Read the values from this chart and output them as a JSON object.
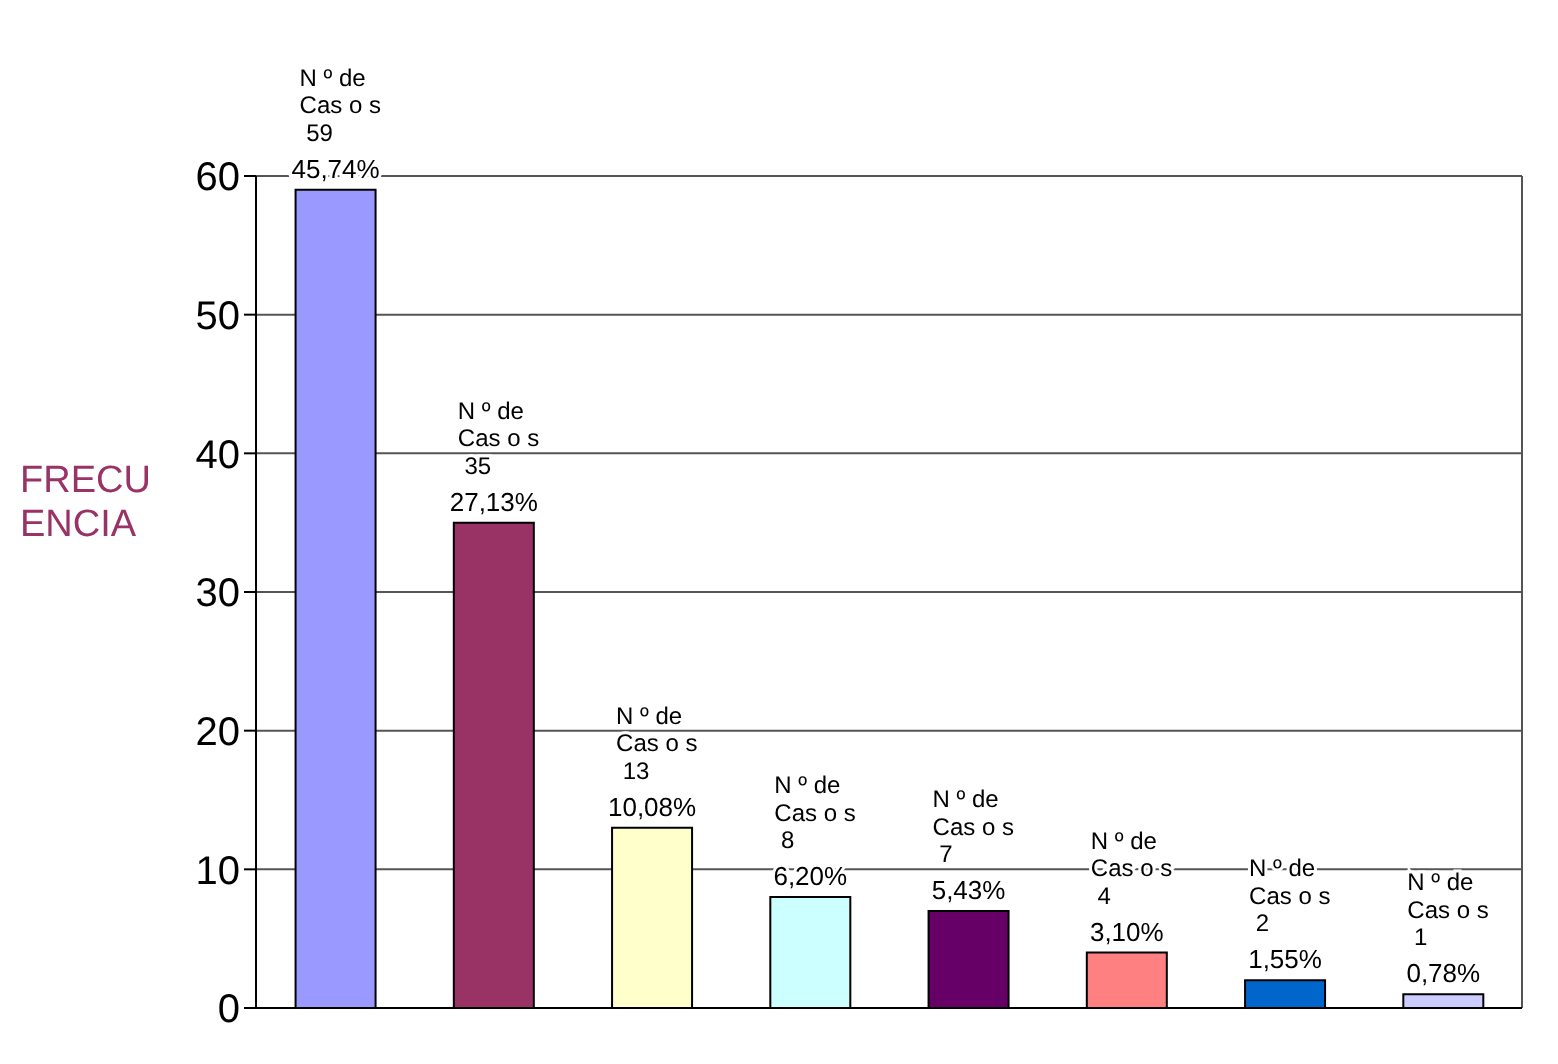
{
  "chart_data": {
    "type": "bar",
    "ylabel": "FRECU\nENCIA",
    "categories": [
      null,
      null,
      null,
      null,
      null,
      null,
      null,
      null
    ],
    "values": [
      59,
      35,
      13,
      8,
      7,
      4,
      2,
      1
    ],
    "colors": [
      "#9999ff",
      "#993366",
      "#ffffcc",
      "#ccffff",
      "#660066",
      "#ff8080",
      "#0066cc",
      "#ccccff"
    ],
    "value_labels": [
      "N º de\nCas o s\n 59",
      "N º de\nCas o s\n 35",
      "N º de\nCas o s\n 13",
      "N º de\nCas o s\n 8",
      "N º de\nCas o s\n 7",
      "N º de\nCas o s\n 4",
      "N º de\nCas o s\n 2",
      "N º de\nCas o s\n 1"
    ],
    "annotations": [
      "45,74%",
      "27,13%",
      "10,08%",
      "6,20%",
      "5,43%",
      "3,10%",
      "1,55%",
      "0,78%"
    ],
    "ylim": [
      0,
      60
    ],
    "yticks": [
      0,
      10,
      20,
      30,
      40,
      50,
      60
    ],
    "grid": true,
    "tick_labels": "y",
    "legend": false
  }
}
